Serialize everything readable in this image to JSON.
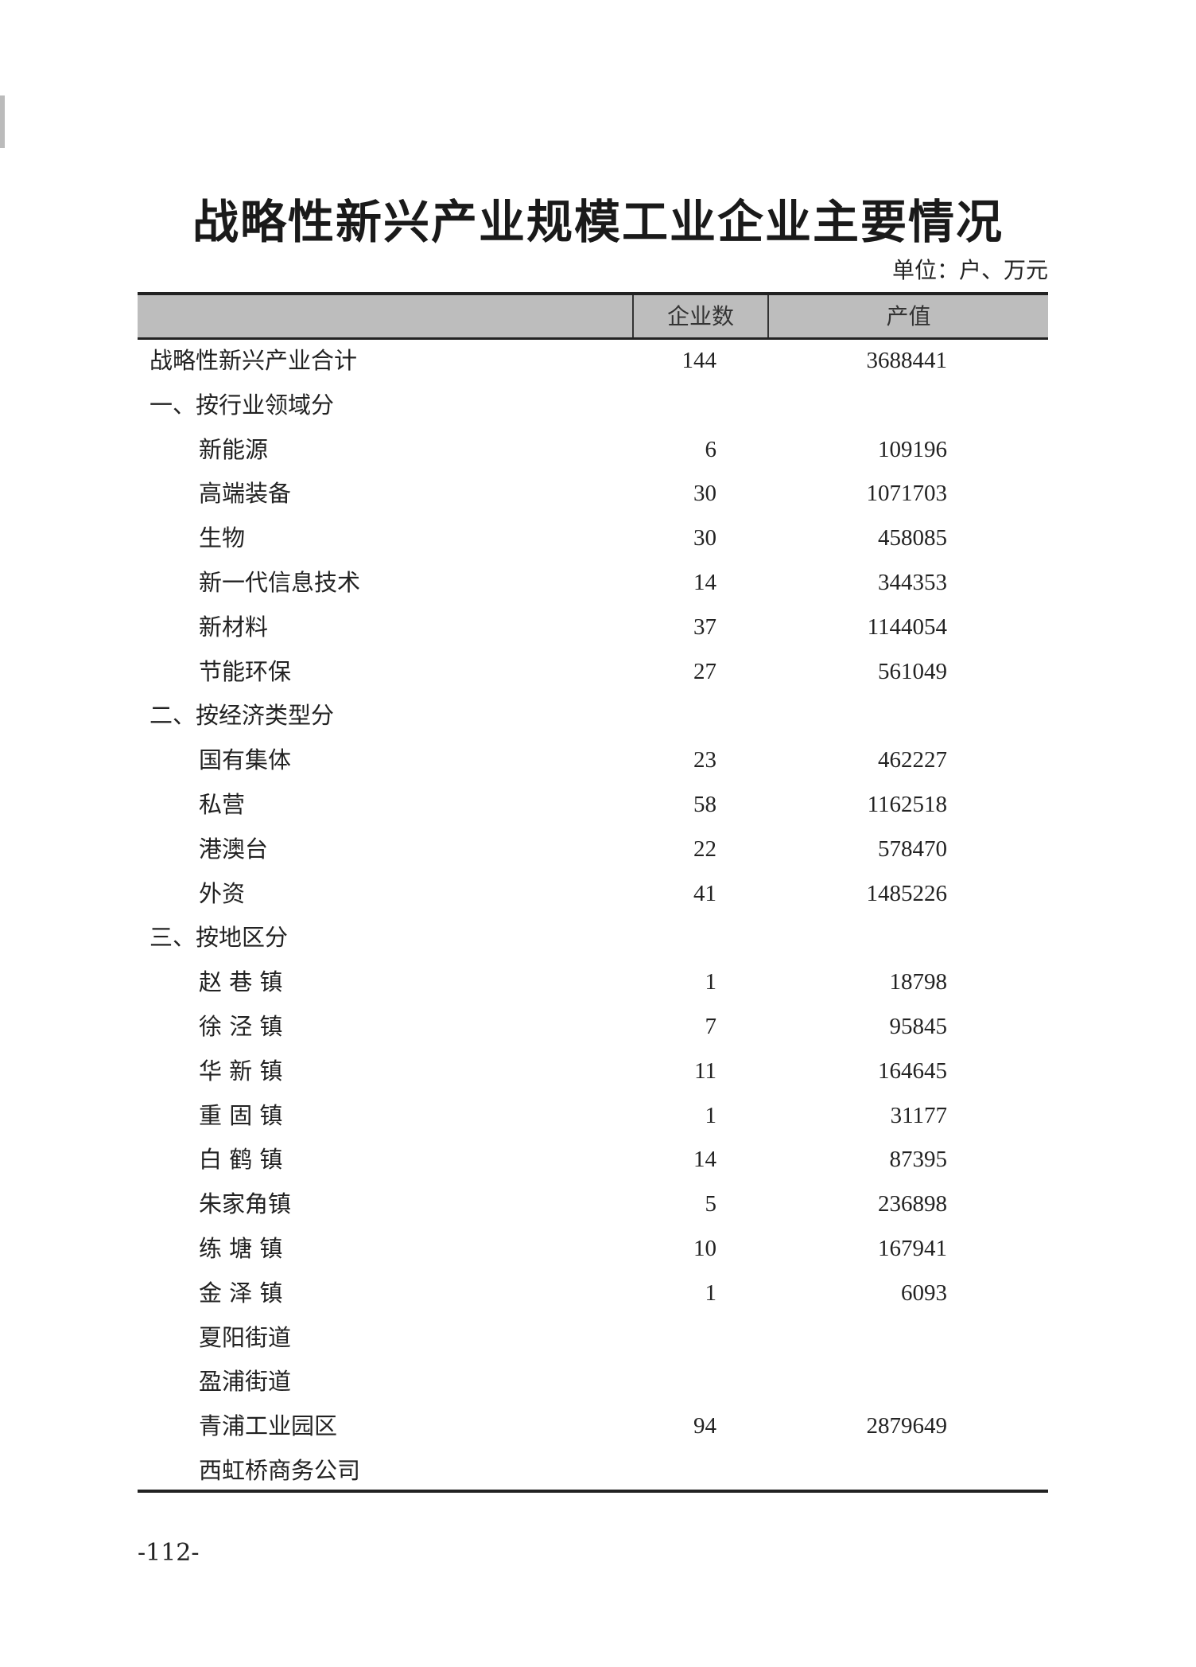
{
  "title": "战略性新兴产业规模工业企业主要情况",
  "unit": "单位：户、万元",
  "columns": [
    "",
    "企业数",
    "产值"
  ],
  "rows": [
    {
      "label": "战略性新兴产业合计",
      "level": 0,
      "count": "144",
      "value": "3688441"
    },
    {
      "label": "一、按行业领域分",
      "level": 0,
      "count": "",
      "value": ""
    },
    {
      "label": "新能源",
      "level": 1,
      "count": "6",
      "value": "109196"
    },
    {
      "label": "高端装备",
      "level": 1,
      "count": "30",
      "value": "1071703"
    },
    {
      "label": "生物",
      "level": 1,
      "count": "30",
      "value": "458085"
    },
    {
      "label": "新一代信息技术",
      "level": 1,
      "count": "14",
      "value": "344353"
    },
    {
      "label": "新材料",
      "level": 1,
      "count": "37",
      "value": "1144054"
    },
    {
      "label": "节能环保",
      "level": 1,
      "count": "27",
      "value": "561049"
    },
    {
      "label": "二、按经济类型分",
      "level": 0,
      "count": "",
      "value": ""
    },
    {
      "label": "国有集体",
      "level": 1,
      "count": "23",
      "value": "462227"
    },
    {
      "label": "私营",
      "level": 1,
      "count": "58",
      "value": "1162518"
    },
    {
      "label": "港澳台",
      "level": 1,
      "count": "22",
      "value": "578470"
    },
    {
      "label": "外资",
      "level": 1,
      "count": "41",
      "value": "1485226"
    },
    {
      "label": "三、按地区分",
      "level": 0,
      "count": "",
      "value": ""
    },
    {
      "label": "赵 巷 镇",
      "level": 1,
      "count": "1",
      "value": "18798"
    },
    {
      "label": "徐 泾 镇",
      "level": 1,
      "count": "7",
      "value": "95845"
    },
    {
      "label": "华 新 镇",
      "level": 1,
      "count": "11",
      "value": "164645"
    },
    {
      "label": "重 固 镇",
      "level": 1,
      "count": "1",
      "value": "31177"
    },
    {
      "label": "白 鹤 镇",
      "level": 1,
      "count": "14",
      "value": "87395"
    },
    {
      "label": "朱家角镇",
      "level": 1,
      "count": "5",
      "value": "236898"
    },
    {
      "label": "练 塘 镇",
      "level": 1,
      "count": "10",
      "value": "167941"
    },
    {
      "label": "金 泽 镇",
      "level": 1,
      "count": "1",
      "value": "6093"
    },
    {
      "label": "夏阳街道",
      "level": 1,
      "count": "",
      "value": ""
    },
    {
      "label": "盈浦街道",
      "level": 1,
      "count": "",
      "value": ""
    },
    {
      "label": "青浦工业园区",
      "level": 1,
      "count": "94",
      "value": "2879649"
    },
    {
      "label": "西虹桥商务公司",
      "level": 1,
      "count": "",
      "value": ""
    }
  ],
  "page_number": "-112-"
}
